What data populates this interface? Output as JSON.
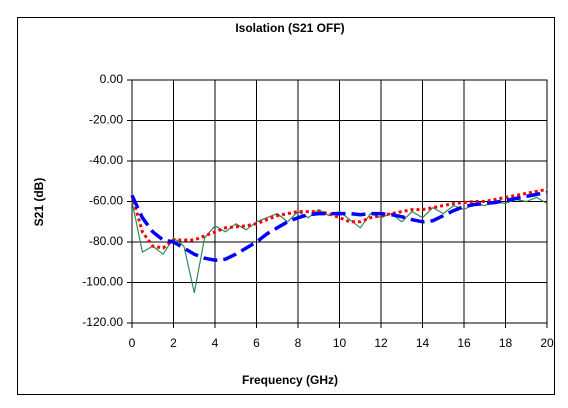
{
  "chart_data": {
    "type": "line",
    "title": "Isolation (S21 OFF)",
    "x_label": "Frequency (GHz)",
    "y_label": "S21 (dB)",
    "x": [
      0,
      0.5,
      1,
      1.5,
      2,
      2.5,
      3,
      3.5,
      4,
      4.5,
      5,
      5.5,
      6,
      6.5,
      7,
      7.5,
      8,
      8.5,
      9,
      9.5,
      10,
      10.5,
      11,
      11.5,
      12,
      12.5,
      13,
      13.5,
      14,
      14.5,
      15,
      15.5,
      16,
      16.5,
      17,
      17.5,
      18,
      18.5,
      19,
      19.5,
      20
    ],
    "series": [
      {
        "color": "#2e8b57",
        "line_style": "solid",
        "values": [
          -60,
          -85,
          -82,
          -86,
          -78,
          -82,
          -105,
          -78,
          -72,
          -75,
          -71,
          -74,
          -70,
          -68,
          -66,
          -70,
          -65,
          -68,
          -64,
          -67,
          -65,
          -69,
          -73,
          -66,
          -68,
          -66,
          -70,
          -65,
          -68,
          -63,
          -66,
          -62,
          -64,
          -61,
          -62,
          -60,
          -61,
          -59,
          -60,
          -58,
          -61
        ]
      },
      {
        "color": "#ff0000",
        "line_style": "dotted",
        "values": [
          -57,
          -75,
          -82,
          -83,
          -79,
          -79,
          -79,
          -77,
          -75,
          -73,
          -72.5,
          -72,
          -71,
          -69,
          -67,
          -66,
          -65,
          -65,
          -65,
          -66,
          -68,
          -70,
          -70,
          -68,
          -67,
          -66,
          -65,
          -64,
          -64,
          -63,
          -62,
          -61,
          -60.5,
          -60,
          -60,
          -59,
          -58,
          -57,
          -56,
          -55,
          -54
        ]
      },
      {
        "color": "#0000ff",
        "line_style": "dashed",
        "values": [
          -57,
          -68,
          -75,
          -79,
          -80,
          -83,
          -86,
          -88,
          -89,
          -88.5,
          -86,
          -83,
          -80,
          -76,
          -73,
          -70,
          -68,
          -66.5,
          -66,
          -66,
          -66,
          -66,
          -66.5,
          -66,
          -66,
          -66.5,
          -67.5,
          -69,
          -70,
          -69.5,
          -67,
          -64.5,
          -62.5,
          -61.5,
          -61,
          -60.5,
          -59.5,
          -58.5,
          -57.5,
          -56.5,
          -55.5
        ]
      }
    ],
    "xlim": [
      0,
      20
    ],
    "xticks": [
      0,
      2,
      4,
      6,
      8,
      10,
      12,
      14,
      16,
      18,
      20
    ],
    "ylim": [
      -120,
      0
    ],
    "yticks": [
      {
        "value": 0,
        "label": "0.00"
      },
      {
        "value": -20,
        "label": "-20.00"
      },
      {
        "value": -40,
        "label": "-40.00"
      },
      {
        "value": -60,
        "label": "-60.00"
      },
      {
        "value": -80,
        "label": "-80.00"
      },
      {
        "value": -100,
        "label": "-100.00"
      },
      {
        "value": -120,
        "label": "-120.00"
      }
    ],
    "grid": true
  }
}
